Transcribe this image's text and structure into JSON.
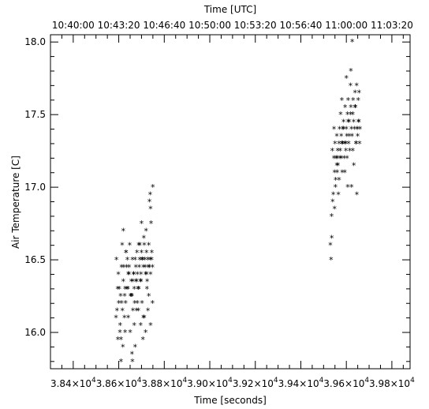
{
  "chart_data": {
    "type": "scatter",
    "title": "",
    "xlabel": "Time [seconds]",
    "ylabel": "Air Temperature [C]",
    "top_xlabel": "Time [UTC]",
    "xlim": [
      38300,
      39880
    ],
    "ylim": [
      15.75,
      18.05
    ],
    "x_ticks": [
      38400,
      38600,
      38800,
      39000,
      39200,
      39400,
      39600,
      39800
    ],
    "x_tick_labels": [
      [
        "3.84×10",
        "4"
      ],
      [
        "3.86×10",
        "4"
      ],
      [
        "3.88×10",
        "4"
      ],
      [
        "3.90×10",
        "4"
      ],
      [
        "3.92×10",
        "4"
      ],
      [
        "3.94×10",
        "4"
      ],
      [
        "3.96×10",
        "4"
      ],
      [
        "3.98×10",
        "4"
      ]
    ],
    "y_ticks": [
      16.0,
      16.5,
      17.0,
      17.5,
      18.0
    ],
    "y_tick_labels": [
      "16.0",
      "16.5",
      "17.0",
      "17.5",
      "18.0"
    ],
    "top_ticks": [
      38400,
      38600,
      38800,
      39000,
      39200,
      39400,
      39600,
      39800
    ],
    "top_tick_labels": [
      "10:40:00",
      "10:43:20",
      "10:46:40",
      "10:50:00",
      "10:53:20",
      "10:56:40",
      "11:00:00",
      "11:03:20"
    ],
    "grid": false,
    "marker": "*",
    "series": [
      {
        "x": [
          38590,
          38595,
          38600,
          38605,
          38610,
          38612,
          38615,
          38620,
          38625,
          38628,
          38630,
          38632,
          38635,
          38640,
          38642,
          38645,
          38650,
          38655,
          38658,
          38660,
          38662,
          38665,
          38668,
          38670,
          38672,
          38675,
          38678,
          38680,
          38682,
          38685,
          38688,
          38690,
          38692,
          38695,
          38698,
          38700,
          38702,
          38705,
          38708,
          38710,
          38712,
          38715,
          38718,
          38720,
          38722,
          38725,
          38728,
          38730,
          38732,
          38735,
          38738,
          38740,
          38742,
          38745,
          38748,
          38750,
          38588,
          38598,
          38608,
          38618,
          38628,
          38638,
          38648,
          38658,
          38668,
          38678,
          38688,
          38698,
          38708,
          38718,
          38728,
          38738,
          38748,
          38740,
          38732,
          38724,
          38716,
          38706,
          38696,
          38686,
          38676,
          38666,
          38656,
          38646,
          38636,
          38626,
          38616,
          38606,
          38596,
          38592,
          38602,
          38612,
          38622,
          38632,
          38642,
          38652,
          38662,
          38672,
          38682,
          38692,
          38702,
          38712,
          38722,
          38734,
          38744,
          38620,
          38700,
          38740,
          38660,
          38610
        ],
        "y": [
          16.5,
          16.3,
          16.2,
          16.0,
          15.95,
          16.45,
          16.6,
          16.35,
          16.1,
          16.3,
          16.2,
          16.55,
          16.45,
          16.3,
          16.1,
          16.4,
          16.0,
          16.35,
          16.25,
          16.5,
          16.15,
          16.4,
          16.3,
          16.2,
          16.5,
          16.45,
          16.35,
          16.55,
          16.4,
          16.3,
          16.6,
          16.45,
          16.5,
          16.35,
          16.4,
          16.55,
          16.2,
          16.5,
          16.45,
          16.65,
          16.6,
          16.5,
          16.4,
          16.7,
          16.55,
          16.35,
          16.5,
          16.45,
          16.6,
          16.9,
          16.5,
          16.85,
          16.75,
          16.55,
          16.45,
          17.0,
          16.1,
          16.4,
          16.25,
          15.9,
          16.0,
          16.5,
          16.6,
          15.85,
          16.05,
          16.15,
          16.3,
          16.35,
          16.1,
          16.0,
          16.15,
          16.95,
          16.2,
          16.05,
          16.25,
          16.3,
          16.45,
          15.95,
          16.05,
          16.15,
          16.35,
          16.4,
          16.25,
          16.45,
          16.3,
          16.25,
          16.15,
          16.05,
          15.95,
          16.15,
          16.3,
          16.2,
          16.45,
          16.55,
          16.4,
          16.25,
          16.35,
          15.9,
          16.2,
          16.6,
          16.5,
          16.1,
          16.4,
          16.45,
          16.5,
          16.7,
          16.75,
          16.4,
          15.8,
          15.8
        ],
        "x2": [
          39530,
          39535,
          39540,
          39545,
          39548,
          39550,
          39552,
          39555,
          39558,
          39560,
          39562,
          39565,
          39568,
          39570,
          39572,
          39575,
          39578,
          39580,
          39582,
          39585,
          39588,
          39590,
          39592,
          39595,
          39598,
          39600,
          39602,
          39605,
          39608,
          39610,
          39612,
          39615,
          39618,
          39620,
          39622,
          39625,
          39628,
          39630,
          39632,
          39635,
          39638,
          39640,
          39642,
          39645,
          39648,
          39650,
          39652,
          39655,
          39658,
          39660,
          39533,
          39543,
          39553,
          39563,
          39573,
          39583,
          39593,
          39603,
          39613,
          39623,
          39633,
          39643,
          39653,
          39538,
          39548,
          39558,
          39568,
          39578,
          39588,
          39598,
          39608,
          39618,
          39628,
          39638,
          39648,
          39656,
          39620,
          39600,
          39560,
          39580,
          39536,
          39546,
          39626,
          39646,
          39606
        ],
        "y2": [
          16.6,
          16.8,
          16.9,
          17.2,
          17.1,
          17.3,
          17.0,
          17.2,
          17.35,
          17.1,
          17.25,
          16.95,
          17.3,
          17.4,
          17.2,
          17.5,
          17.35,
          17.3,
          17.1,
          17.4,
          17.45,
          17.2,
          17.3,
          17.55,
          17.25,
          17.4,
          17.35,
          17.5,
          17.6,
          17.3,
          17.45,
          17.25,
          17.7,
          17.55,
          17.4,
          17.35,
          17.5,
          17.6,
          17.45,
          17.4,
          17.65,
          17.55,
          17.3,
          17.7,
          17.4,
          17.35,
          17.6,
          17.45,
          17.3,
          17.4,
          16.5,
          16.95,
          17.05,
          17.15,
          17.25,
          17.3,
          17.1,
          17.2,
          17.35,
          17.0,
          17.15,
          17.3,
          17.45,
          17.25,
          16.85,
          17.15,
          17.05,
          17.2,
          17.4,
          17.3,
          17.45,
          17.5,
          17.25,
          17.55,
          17.4,
          17.65,
          17.8,
          17.75,
          17.2,
          17.6,
          16.65,
          17.4,
          18.0,
          16.95,
          17.0
        ]
      }
    ]
  }
}
